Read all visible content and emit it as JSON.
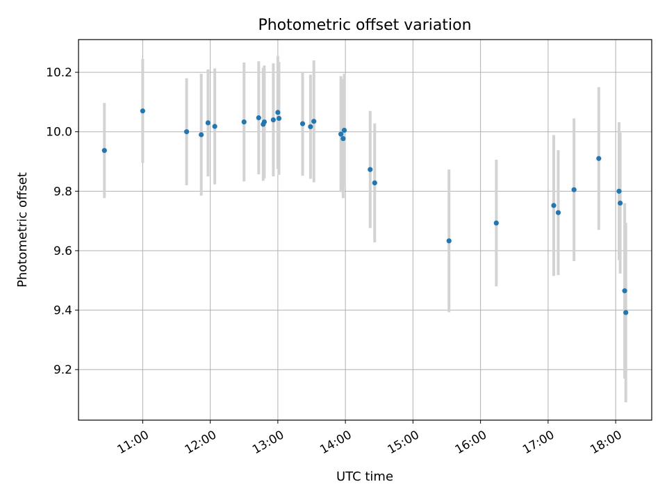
{
  "chart_data": {
    "type": "scatter",
    "title": "Photometric offset variation",
    "xlabel": "UTC time",
    "ylabel": "Photometric offset",
    "grid": true,
    "xlim": [
      "10:03",
      "18:32"
    ],
    "ylim": [
      9.03,
      10.31
    ],
    "x_ticks": [
      "11:00",
      "12:00",
      "13:00",
      "14:00",
      "15:00",
      "16:00",
      "17:00",
      "18:00"
    ],
    "y_ticks": [
      9.2,
      9.4,
      9.6,
      9.8,
      10.0,
      10.2
    ],
    "y_tick_labels": [
      "9.2",
      "9.4",
      "9.6",
      "9.8",
      "10.0",
      "10.2"
    ],
    "colors": {
      "points": "#1f77b4",
      "error_bars": "#d3d3d3",
      "grid": "#b0b0b0"
    },
    "points": [
      {
        "x": "10:26",
        "y": 9.937,
        "err": 0.16
      },
      {
        "x": "11:00",
        "y": 10.07,
        "err": 0.175
      },
      {
        "x": "11:39",
        "y": 10.0,
        "err": 0.18
      },
      {
        "x": "11:52",
        "y": 9.99,
        "err": 0.205
      },
      {
        "x": "11:58",
        "y": 10.03,
        "err": 0.18
      },
      {
        "x": "12:04",
        "y": 10.018,
        "err": 0.195
      },
      {
        "x": "12:30",
        "y": 10.033,
        "err": 0.2
      },
      {
        "x": "12:43",
        "y": 10.047,
        "err": 0.19
      },
      {
        "x": "12:47",
        "y": 10.025,
        "err": 0.19
      },
      {
        "x": "12:48",
        "y": 10.033,
        "err": 0.19
      },
      {
        "x": "12:56",
        "y": 10.04,
        "err": 0.19
      },
      {
        "x": "13:00",
        "y": 10.065,
        "err": 0.19
      },
      {
        "x": "13:01",
        "y": 10.045,
        "err": 0.19
      },
      {
        "x": "13:22",
        "y": 10.027,
        "err": 0.175
      },
      {
        "x": "13:29",
        "y": 10.017,
        "err": 0.175
      },
      {
        "x": "13:32",
        "y": 10.035,
        "err": 0.205
      },
      {
        "x": "13:56",
        "y": 9.992,
        "err": 0.195
      },
      {
        "x": "13:58",
        "y": 9.977,
        "err": 0.2
      },
      {
        "x": "13:59",
        "y": 10.005,
        "err": 0.19
      },
      {
        "x": "14:22",
        "y": 9.873,
        "err": 0.197
      },
      {
        "x": "14:26",
        "y": 9.828,
        "err": 0.2
      },
      {
        "x": "15:32",
        "y": 9.633,
        "err": 0.24
      },
      {
        "x": "16:14",
        "y": 9.693,
        "err": 0.213
      },
      {
        "x": "17:05",
        "y": 9.752,
        "err": 0.237
      },
      {
        "x": "17:09",
        "y": 9.728,
        "err": 0.21
      },
      {
        "x": "17:23",
        "y": 9.805,
        "err": 0.24
      },
      {
        "x": "17:45",
        "y": 9.91,
        "err": 0.24
      },
      {
        "x": "18:03",
        "y": 9.8,
        "err": 0.232
      },
      {
        "x": "18:04",
        "y": 9.76,
        "err": 0.237
      },
      {
        "x": "18:08",
        "y": 9.465,
        "err": 0.295
      },
      {
        "x": "18:09",
        "y": 9.392,
        "err": 0.302
      }
    ]
  }
}
